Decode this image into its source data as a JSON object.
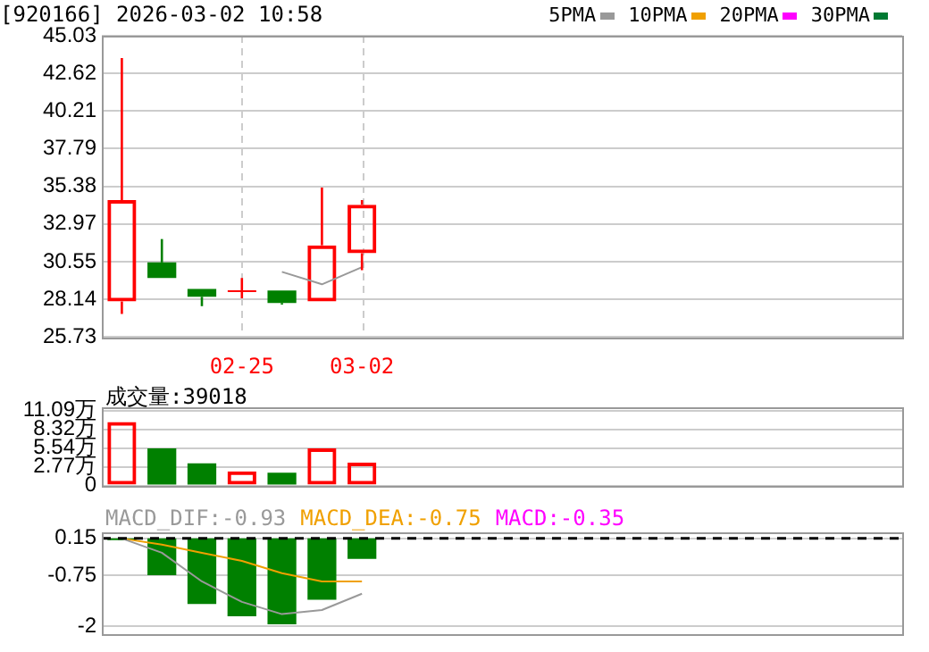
{
  "chart_data": [
    {
      "type": "candlestick",
      "title": "[920166] 2026-03-02 10:58",
      "categories": [
        null,
        null,
        null,
        "02-25",
        null,
        null,
        "03-02",
        null,
        null,
        null,
        null,
        null,
        null,
        null,
        null,
        null,
        null,
        null,
        null,
        null
      ],
      "ohlc": [
        [
          28.0,
          43.6,
          27.2,
          34.5
        ],
        [
          30.5,
          32.0,
          29.5,
          29.5
        ],
        [
          28.8,
          28.8,
          27.7,
          28.3
        ],
        [
          28.6,
          29.5,
          28.2,
          28.7
        ],
        [
          28.7,
          28.7,
          27.8,
          27.9
        ],
        [
          28.0,
          35.3,
          28.0,
          31.6
        ],
        [
          31.1,
          34.5,
          30.0,
          34.2
        ],
        null,
        null,
        null,
        null,
        null,
        null,
        null,
        null,
        null,
        null,
        null,
        null,
        null
      ],
      "colors": [
        "#ff0000",
        "#008000",
        "#008000",
        "#ff0000",
        "#008000",
        "#ff0000",
        "#ff0000",
        null,
        null,
        null,
        null,
        null,
        null,
        null,
        null,
        null,
        null,
        null,
        null,
        null
      ],
      "series": [
        {
          "name": "5PMA",
          "type": "line",
          "color": "#999999",
          "values": [
            null,
            null,
            null,
            null,
            29.9,
            29.1,
            30.2,
            null,
            null,
            null,
            null,
            null,
            null,
            null,
            null,
            null,
            null,
            null,
            null,
            null
          ]
        },
        {
          "name": "10PMA",
          "type": "line",
          "color": "#f0a000",
          "values": [
            null,
            null,
            null,
            null,
            null,
            null,
            null,
            null,
            null,
            null,
            null,
            null,
            null,
            null,
            null,
            null,
            null,
            null,
            null,
            null
          ]
        },
        {
          "name": "20PMA",
          "type": "line",
          "color": "#ff00ff",
          "values": [
            null,
            null,
            null,
            null,
            null,
            null,
            null,
            null,
            null,
            null,
            null,
            null,
            null,
            null,
            null,
            null,
            null,
            null,
            null,
            null
          ]
        },
        {
          "name": "30PMA",
          "type": "line",
          "color": "#007a33",
          "values": [
            null,
            null,
            null,
            null,
            null,
            null,
            null,
            null,
            null,
            null,
            null,
            null,
            null,
            null,
            null,
            null,
            null,
            null,
            null,
            null
          ]
        }
      ],
      "ylim": [
        25.73,
        45.03
      ],
      "yticks": [
        25.73,
        28.14,
        30.55,
        32.97,
        35.38,
        37.79,
        40.21,
        42.62,
        45.03
      ],
      "grid": true,
      "legend": "top right"
    },
    {
      "type": "bar",
      "annotations": [
        "成交量:39018"
      ],
      "categories": [
        null,
        null,
        null,
        null,
        null,
        null,
        null,
        null,
        null,
        null,
        null,
        null,
        null,
        null,
        null,
        null,
        null,
        null,
        null,
        null
      ],
      "values": [
        9.4,
        5.5,
        3.3,
        2.1,
        1.9,
        5.5,
        3.4,
        null,
        null,
        null,
        null,
        null,
        null,
        null,
        null,
        null,
        null,
        null,
        null,
        null
      ],
      "colors": [
        "#ff0000",
        "#008000",
        "#008000",
        "#ff0000",
        "#008000",
        "#ff0000",
        "#ff0000",
        null,
        null,
        null,
        null,
        null,
        null,
        null,
        null,
        null,
        null,
        null,
        null,
        null
      ],
      "ylim": [
        0,
        11.6
      ],
      "yticks": [
        0,
        {
          "value": 2.77,
          "label": "2.77万"
        },
        {
          "value": 5.54,
          "label": "5.54万"
        },
        {
          "value": 8.32,
          "label": "8.32万"
        },
        {
          "value": 11.09,
          "label": "11.09万"
        }
      ],
      "tick_labels": "y",
      "grid": true
    },
    {
      "type": "bar",
      "annotations": [
        "MACD:-0.35"
      ],
      "categories": [
        null,
        null,
        null,
        null,
        null,
        null,
        null,
        null,
        null,
        null,
        null,
        null,
        null,
        null,
        null,
        null,
        null,
        null,
        null,
        null
      ],
      "series": [
        {
          "name": "MACD_DIF:-0.93",
          "type": "line",
          "color": "#999999",
          "values": [
            0.15,
            -0.2,
            -0.9,
            -1.4,
            -1.7,
            -1.6,
            -1.2,
            null,
            null,
            null,
            null,
            null,
            null,
            null,
            null,
            null,
            null,
            null,
            null,
            null
          ]
        },
        {
          "name": "MACD_DEA:-0.75",
          "type": "line",
          "color": "#f0a000",
          "values": [
            0.15,
            0.0,
            -0.2,
            -0.4,
            -0.7,
            -0.9,
            -0.9,
            null,
            null,
            null,
            null,
            null,
            null,
            null,
            null,
            null,
            null,
            null,
            null,
            null
          ]
        },
        {
          "type": "bar",
          "color": "#008000",
          "base": [
            0.15,
            0.15,
            0.15,
            0.15,
            0.15,
            0.15,
            0.15,
            null,
            null,
            null,
            null,
            null,
            null,
            null,
            null,
            null,
            null,
            null,
            null,
            null
          ],
          "values": [
            0,
            -0.9,
            -1.6,
            -1.9,
            -2.1,
            -1.5,
            -0.5,
            null,
            null,
            null,
            null,
            null,
            null,
            null,
            null,
            null,
            null,
            null,
            null,
            null
          ]
        }
      ],
      "ref_lines": [
        {
          "axis": "y",
          "value": 0.15,
          "color": "#000000",
          "line_style": "dashed"
        }
      ],
      "ylim": [
        -2.18,
        0.3
      ],
      "yticks": [
        0.15,
        -0.75,
        -2
      ],
      "tick_labels": "y",
      "grid": true,
      "legend": "top left"
    }
  ]
}
